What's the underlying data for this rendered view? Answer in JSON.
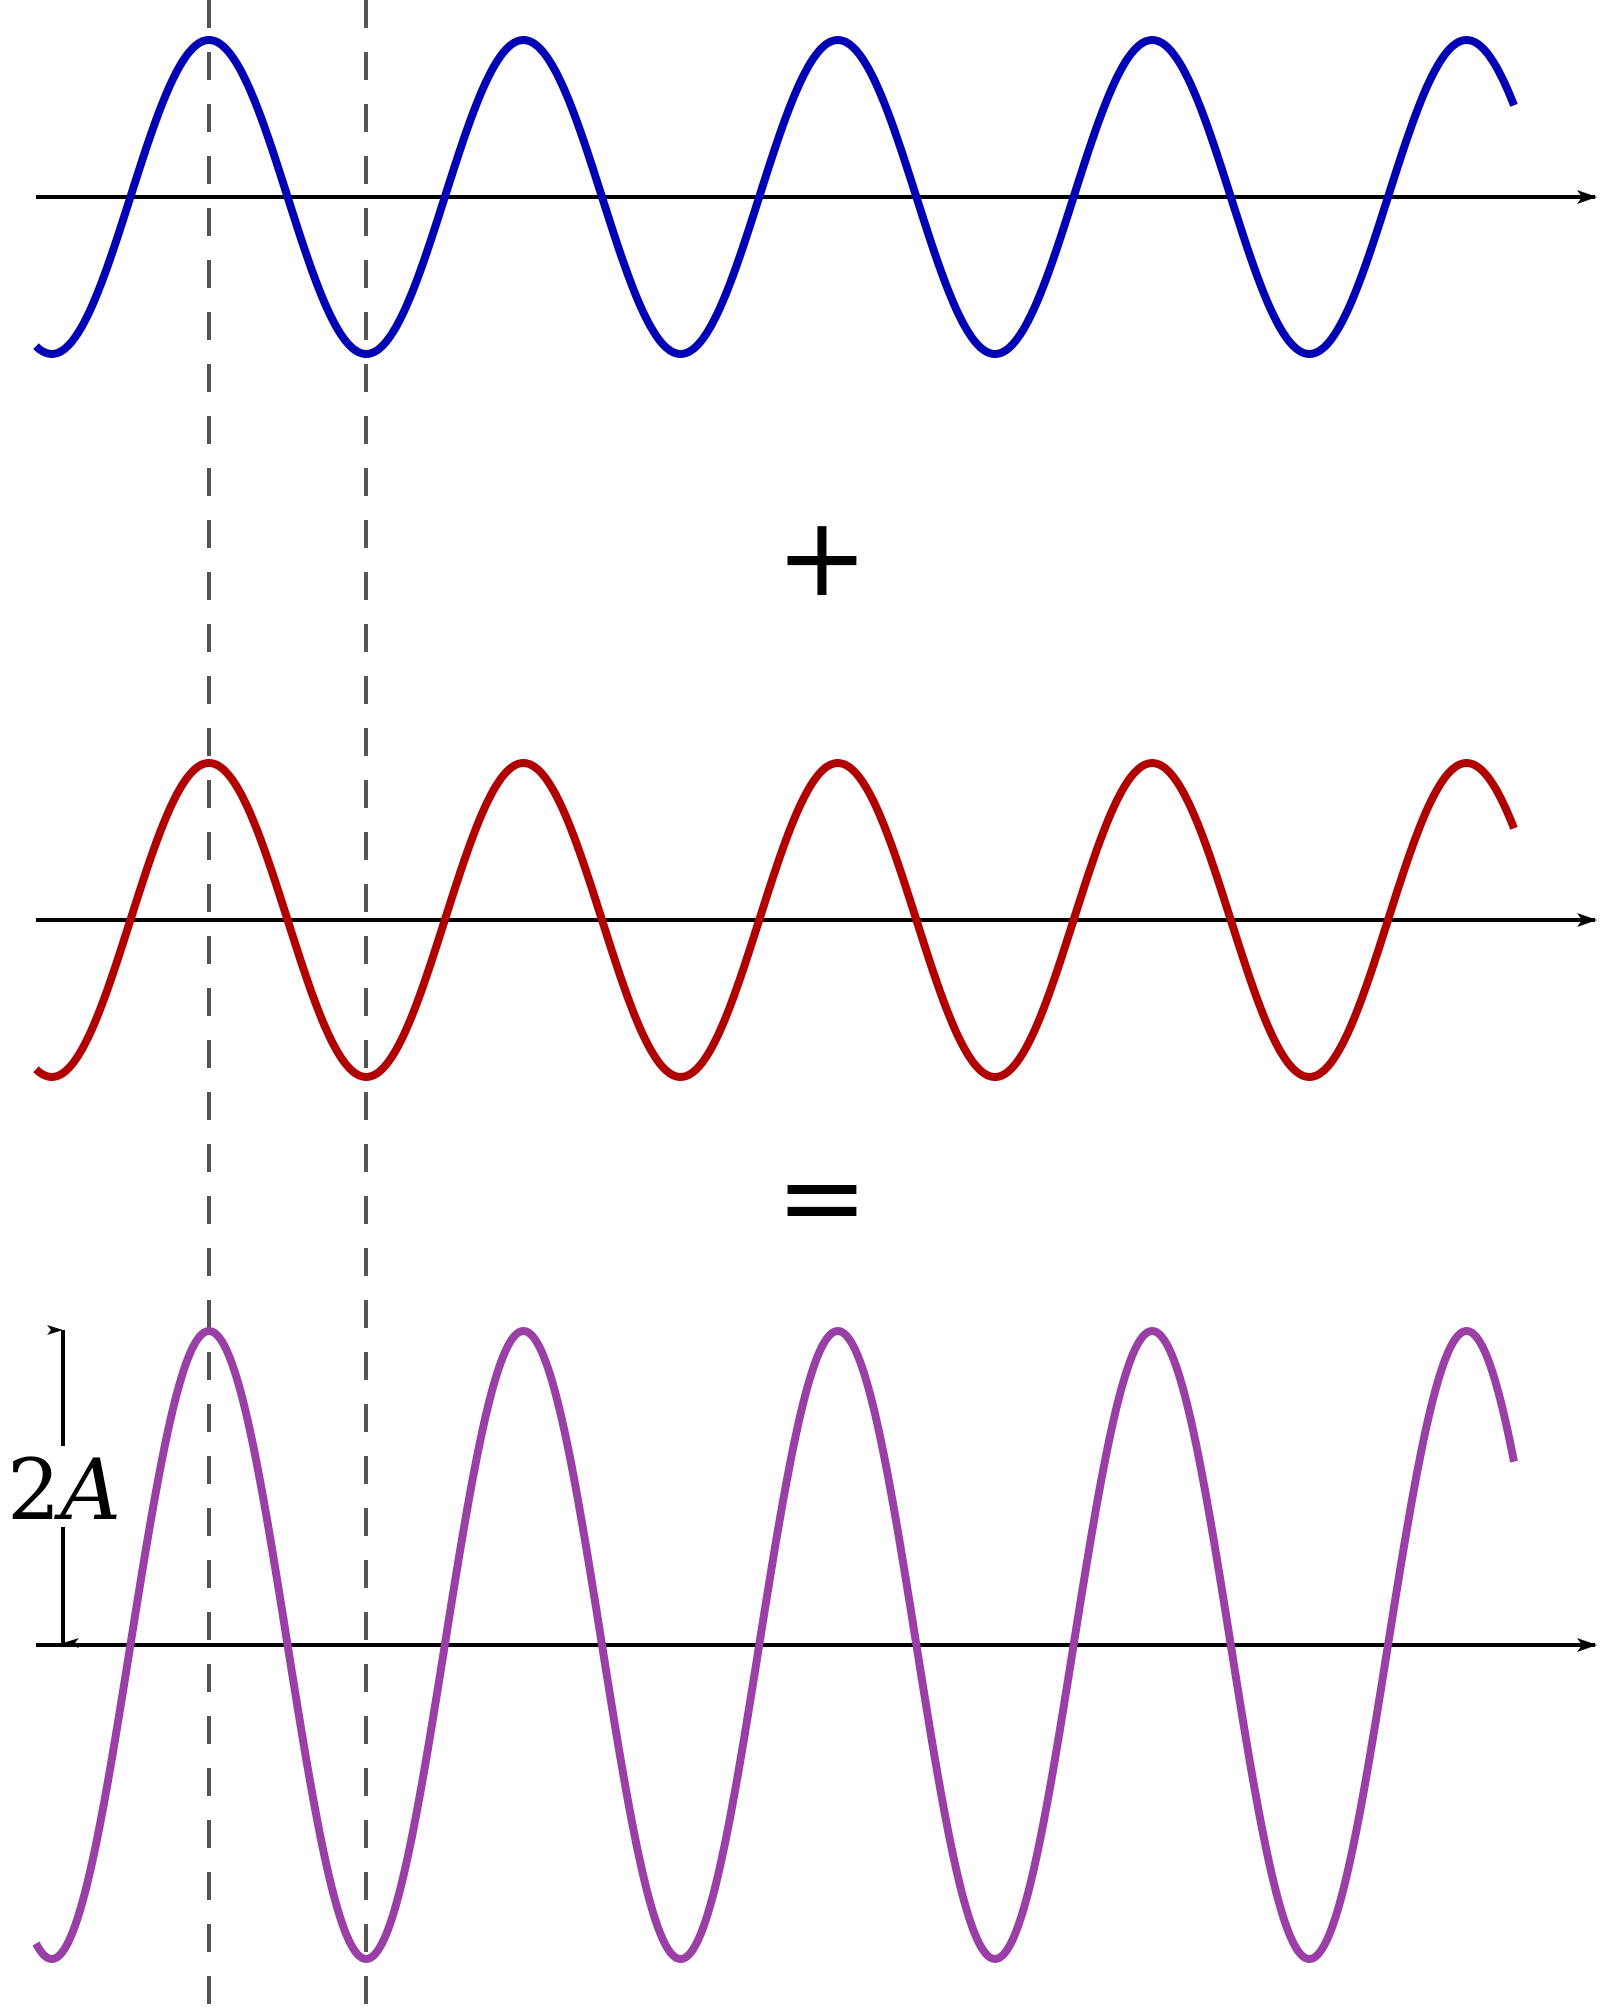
{
  "diagram": {
    "operators": {
      "plus": "+",
      "equals": "="
    },
    "amplitude_label": {
      "number": "2",
      "symbol": "A"
    },
    "waves": [
      {
        "id": "wave-1",
        "color": "#0000b4",
        "relative_amplitude": 1
      },
      {
        "id": "wave-2",
        "color": "#b00000",
        "relative_amplitude": 1
      },
      {
        "id": "sum-wave",
        "color": "#9a3fa6",
        "relative_amplitude": 2
      }
    ],
    "axis_color": "#000000",
    "guide_line_color": "#555555"
  }
}
